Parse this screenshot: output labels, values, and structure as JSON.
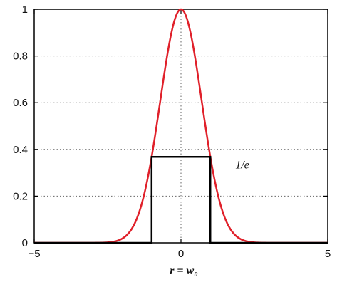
{
  "chart_data": {
    "type": "line",
    "xlabel": "r = w₀",
    "ylabel": "",
    "title": "",
    "xlim": [
      -5,
      5
    ],
    "ylim": [
      0,
      1
    ],
    "x_ticks": [
      "−5",
      "0",
      "5"
    ],
    "y_ticks": [
      "0",
      "0.2",
      "0.4",
      "0.6",
      "0.8",
      "1"
    ],
    "grid": "dotted-major",
    "series": [
      {
        "color": "#e0202a",
        "x": [
          -5,
          -4.5,
          -4,
          -3.5,
          -3,
          -2.5,
          -2,
          -1.5,
          -1,
          -0.5,
          0,
          0.5,
          1,
          1.5,
          2,
          2.5,
          3,
          3.5,
          4,
          4.5,
          5
        ],
        "y": [
          0,
          0,
          0,
          0,
          0,
          0.002,
          0.018,
          0.105,
          0.368,
          0.779,
          1,
          0.779,
          0.368,
          0.105,
          0.018,
          0.002,
          0,
          0,
          0,
          0,
          0
        ]
      },
      {
        "color": "#000000",
        "x": [
          -5,
          -1,
          -1,
          1,
          1,
          5
        ],
        "y": [
          0,
          0,
          0.368,
          0.368,
          0,
          0
        ]
      }
    ],
    "annotations": [
      {
        "text": "1/e",
        "x": 1.85,
        "y": 0.368
      }
    ]
  }
}
